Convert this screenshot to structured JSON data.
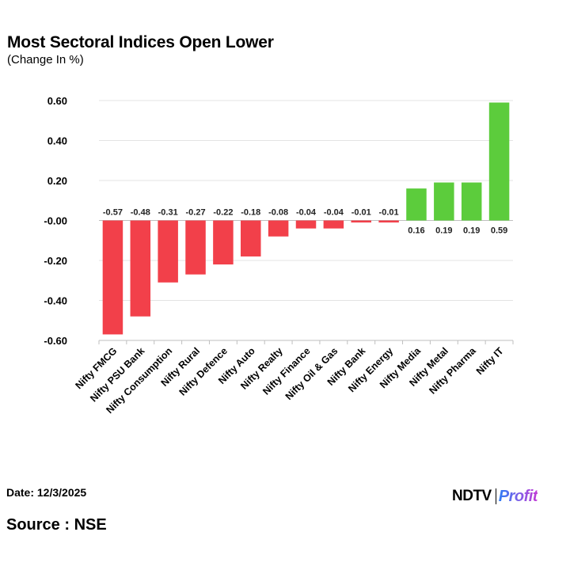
{
  "header": {
    "title": "Most Sectoral Indices Open Lower",
    "subtitle": "(Change In %)"
  },
  "footer": {
    "date": "Date: 12/3/2025",
    "source": "Source : NSE"
  },
  "logo": {
    "brand": "NDTV",
    "product": "Profit"
  },
  "colors": {
    "negative": "#f2404a",
    "positive": "#5ccc3c",
    "grid": "#e3e3e3",
    "axis": "#bfbfbf"
  },
  "chart_data": {
    "type": "bar",
    "title": "Most Sectoral Indices Open Lower",
    "subtitle": "(Change In %)",
    "xlabel": "",
    "ylabel": "",
    "ylim": [
      -0.6,
      0.6
    ],
    "yticks": [
      0.6,
      0.4,
      0.2,
      0.0,
      -0.2,
      -0.4,
      -0.6
    ],
    "ytick_labels": [
      "0.60",
      "0.40",
      "0.20",
      "-0.00",
      "-0.20",
      "-0.40",
      "-0.60"
    ],
    "grid": true,
    "legend": "none",
    "categories": [
      "Nifty FMCG",
      "Nifty PSU Bank",
      "Nifty Consumption",
      "Nifty Rural",
      "Nifty Defence",
      "Nifty Auto",
      "Nifty Realty",
      "Nifty Finance",
      "Nifty Oil & Gas",
      "Nifty Bank",
      "Nifty Energy",
      "Nifty Media",
      "Nifty Metal",
      "Nifty Pharma",
      "Nifty IT"
    ],
    "values": [
      -0.57,
      -0.48,
      -0.31,
      -0.27,
      -0.22,
      -0.18,
      -0.08,
      -0.04,
      -0.04,
      -0.01,
      -0.01,
      0.16,
      0.19,
      0.19,
      0.59
    ],
    "value_labels": [
      "-0.57",
      "-0.48",
      "-0.31",
      "-0.27",
      "-0.22",
      "-0.18",
      "-0.08",
      "-0.04",
      "-0.04",
      "-0.01",
      "-0.01",
      "0.16",
      "0.19",
      "0.19",
      "0.59"
    ]
  }
}
